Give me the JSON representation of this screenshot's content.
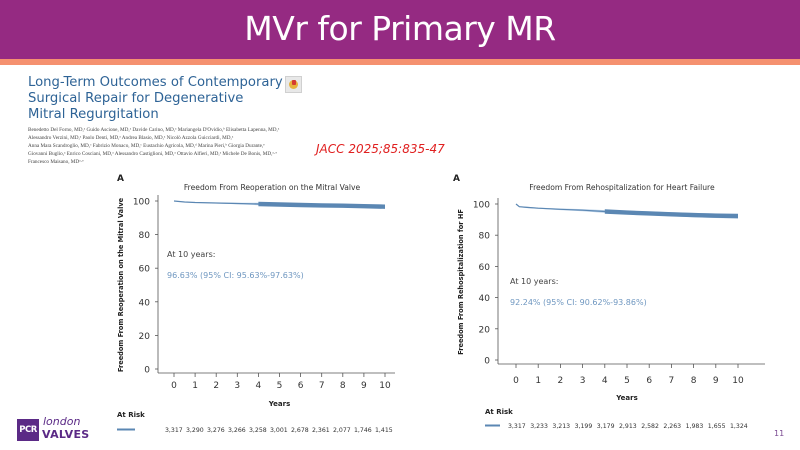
{
  "slide": {
    "title": "MVr for Primary MR",
    "page_number": "11",
    "colors": {
      "header_bg": "#952a82",
      "header_stripe": "#f59170",
      "paper_title": "#2e6396",
      "citation": "#e02020",
      "curve": "#5b87b3",
      "ci_band": "#a9c6e2"
    }
  },
  "paper": {
    "title_lines": [
      "Long-Term Outcomes of Contemporary",
      "Surgical Repair for Degenerative",
      "Mitral Regurgitation"
    ],
    "open_access_icon": "open-access-icon",
    "authors_lines": [
      "Benedetto Del Forno, MD,ᵃ Guido Ascione, MD,ᵃ Davide Carino, MD,ᵃ Mariangela D'Ovidio,ᵇ Elisabetta Lapenna, MD,ᵃ",
      "Alessandro Verzini, MD,ᵃ Paolo Denti, MD,ᵃ Andrea Blasio, MD,ᵃ Nicolò Azzola Guicciardi, MD,ᵃ",
      "Anna Mara Scandroglio, MD,ᶜ Fabrizio Monaco, MD,ᶜ Eustachio Agricola, MD,ᵈ Marina Pieri,ᵇ Giorgia Durante,ᵉ",
      "Giovanni Buglio,ᵃ Enrico Cosciani, MD,ᵃ Alessandro Castiglioni, MD,ᵃ Ottavio Alfieri, MD,ᵃ Michele De Bonis, MD,ᵃ·ᵉ",
      "Francesco Maisano, MDᵃ·ᵉ"
    ],
    "citation": "JACC 2025;85:835-47"
  },
  "logo": {
    "box": "PCR",
    "line1": "london",
    "line2": "VALVES"
  },
  "chart_data": [
    {
      "type": "line",
      "panel_label": "A",
      "title": "Freedom From Reoperation on the Mitral Valve",
      "xlabel": "Years",
      "ylabel": "Freedom From Reoperation on the Mitral Valve",
      "xlim": [
        0,
        10
      ],
      "ylim": [
        0,
        100
      ],
      "x_ticks": [
        0,
        1,
        2,
        3,
        4,
        5,
        6,
        7,
        8,
        9,
        10
      ],
      "y_ticks": [
        0,
        20,
        40,
        60,
        80,
        100
      ],
      "grid": false,
      "series": [
        {
          "name": "Freedom from reoperation",
          "x": [
            0,
            0.5,
            1,
            2,
            3,
            4,
            5,
            6,
            7,
            8,
            9,
            10
          ],
          "values": [
            100,
            99.4,
            99.1,
            98.8,
            98.5,
            98.2,
            97.9,
            97.6,
            97.4,
            97.2,
            96.9,
            96.63
          ],
          "ci_lower": [
            100,
            99.2,
            98.9,
            98.5,
            98.1,
            97.5,
            97.1,
            96.8,
            96.5,
            96.2,
            95.9,
            95.63
          ],
          "ci_upper": [
            100,
            99.6,
            99.3,
            99.1,
            98.9,
            98.9,
            98.7,
            98.4,
            98.3,
            98.2,
            97.9,
            97.63
          ]
        }
      ],
      "annotation": {
        "label": "At 10 years:",
        "value": "96.63% (95% CI: 95.63%-97.63%)"
      },
      "at_risk": {
        "label": "At Risk",
        "values": [
          "3,317",
          "3,290",
          "3,276",
          "3,266",
          "3,258",
          "3,001",
          "2,678",
          "2,361",
          "2,077",
          "1,746",
          "1,415"
        ]
      }
    },
    {
      "type": "line",
      "panel_label": "A",
      "title": "Freedom From Rehospitalization for Heart Failure",
      "xlabel": "Years",
      "ylabel": "Freedom From Rehospitalization for HF",
      "xlim": [
        0,
        10
      ],
      "ylim": [
        0,
        100
      ],
      "x_ticks": [
        0,
        1,
        2,
        3,
        4,
        5,
        6,
        7,
        8,
        9,
        10
      ],
      "y_ticks": [
        0,
        20,
        40,
        60,
        80,
        100
      ],
      "grid": false,
      "series": [
        {
          "name": "Freedom from HF rehospitalization",
          "x": [
            0,
            0.15,
            0.5,
            1,
            2,
            3,
            4,
            5,
            6,
            7,
            8,
            9,
            10
          ],
          "values": [
            100,
            98.3,
            97.8,
            97.3,
            96.6,
            96.0,
            95.2,
            94.5,
            94.0,
            93.4,
            92.9,
            92.5,
            92.24
          ],
          "ci_lower": [
            100,
            98.0,
            97.4,
            96.9,
            96.1,
            95.3,
            94.3,
            93.4,
            92.8,
            92.1,
            91.5,
            91.0,
            90.62
          ],
          "ci_upper": [
            100,
            98.6,
            98.2,
            97.7,
            97.1,
            96.7,
            96.1,
            95.6,
            95.2,
            94.7,
            94.3,
            94.0,
            93.86
          ]
        }
      ],
      "annotation": {
        "label": "At 10 years:",
        "value": "92.24% (95% CI: 90.62%-93.86%)"
      },
      "at_risk": {
        "label": "At Risk",
        "values": [
          "3,317",
          "3,233",
          "3,213",
          "3,199",
          "3,179",
          "2,913",
          "2,582",
          "2,263",
          "1,983",
          "1,655",
          "1,324"
        ]
      }
    }
  ]
}
